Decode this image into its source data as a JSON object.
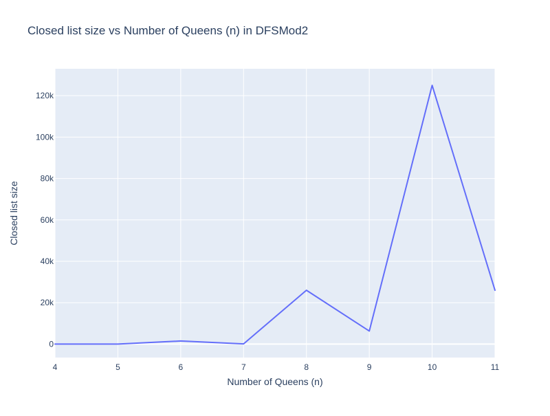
{
  "chart_data": {
    "type": "line",
    "title": "Closed list size vs Number of Queens (n) in DFSMod2",
    "xlabel": "Number of Queens (n)",
    "ylabel": "Closed list size",
    "x": [
      4,
      5,
      6,
      7,
      8,
      9,
      10,
      11
    ],
    "y": [
      15,
      20,
      1500,
      100,
      26000,
      6300,
      125000,
      26000
    ],
    "xlim": [
      4,
      11
    ],
    "ylim": [
      -6500,
      133000
    ],
    "x_ticks": [
      4,
      5,
      6,
      7,
      8,
      9,
      10,
      11
    ],
    "x_tick_labels": [
      "4",
      "5",
      "6",
      "7",
      "8",
      "9",
      "10",
      "11"
    ],
    "y_ticks": [
      0,
      20000,
      40000,
      60000,
      80000,
      100000,
      120000
    ],
    "y_tick_labels": [
      "0",
      "20k",
      "40k",
      "60k",
      "80k",
      "100k",
      "120k"
    ],
    "grid": true,
    "line_color": "#636efa",
    "plot_background": "#e5ecf6",
    "grid_color": "#ffffff"
  }
}
